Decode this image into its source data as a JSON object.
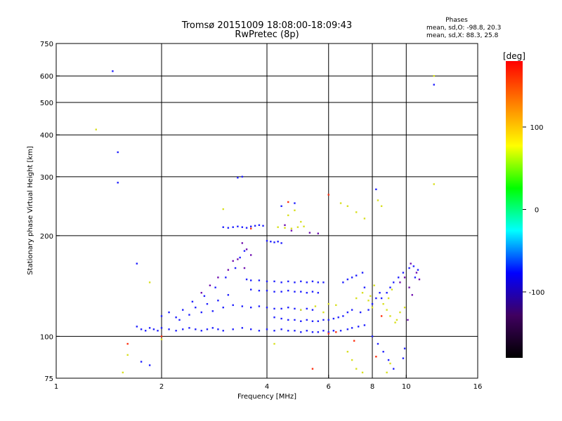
{
  "chart_data": {
    "type": "scatter",
    "title": "Tromsø 20151009 18:08:00-18:09:43",
    "subtitle": "RwPretec (8p)",
    "stats": {
      "heading": "Phases",
      "line_o": "mean, sd,O: -98.8, 20.3",
      "line_x": "mean, sd,X:  88.3, 25.8"
    },
    "xlabel": "Frequency [MHz]",
    "ylabel": "Stationary phase Virtual Height [km]",
    "x_scale": "log",
    "y_scale": "log",
    "xlim": [
      1,
      16
    ],
    "ylim": [
      75,
      750
    ],
    "x_ticks": [
      1,
      2,
      4,
      6,
      8,
      10,
      16
    ],
    "x_tick_labels": [
      "1",
      "2",
      "4",
      "6",
      "8",
      "10",
      "16"
    ],
    "y_ticks": [
      75,
      100,
      200,
      300,
      400,
      500,
      600,
      750
    ],
    "y_tick_labels": [
      "75",
      "100",
      "200",
      "300",
      "400",
      "500",
      "600",
      "750"
    ],
    "grid_x": [
      2,
      4,
      6,
      8,
      10
    ],
    "grid_y": [
      100,
      200,
      300,
      400,
      500,
      600
    ],
    "colorbar": {
      "label": "[deg]",
      "range": [
        -180,
        180
      ],
      "ticks": [
        100,
        0,
        -100
      ],
      "tick_labels": [
        "100",
        "0",
        "-100"
      ],
      "colors": [
        "#ff0000",
        "#ff8000",
        "#ffff00",
        "#00ff00",
        "#00ffff",
        "#0000ff",
        "#400060",
        "#000000"
      ]
    },
    "series": [
      {
        "points": [
          [
            1.7,
            107
          ],
          [
            1.75,
            105
          ],
          [
            1.8,
            104
          ],
          [
            1.85,
            106
          ],
          [
            1.9,
            105
          ],
          [
            1.95,
            104
          ],
          [
            2.0,
            106
          ],
          [
            2.1,
            105
          ],
          [
            2.2,
            104
          ],
          [
            2.3,
            105
          ],
          [
            2.4,
            106
          ],
          [
            2.5,
            105
          ],
          [
            2.6,
            104
          ],
          [
            2.7,
            105
          ],
          [
            2.8,
            106
          ],
          [
            2.9,
            105
          ],
          [
            3.0,
            104
          ],
          [
            3.2,
            105
          ],
          [
            3.4,
            106
          ],
          [
            3.6,
            105
          ],
          [
            3.8,
            104
          ],
          [
            4.0,
            105
          ],
          [
            4.2,
            104
          ],
          [
            4.4,
            105
          ],
          [
            4.6,
            104
          ],
          [
            4.8,
            104
          ],
          [
            5.0,
            103
          ],
          [
            5.2,
            104
          ],
          [
            5.4,
            103
          ],
          [
            5.6,
            103
          ],
          [
            5.8,
            104
          ],
          [
            6.0,
            103
          ],
          [
            6.2,
            104
          ],
          [
            6.5,
            104
          ],
          [
            6.8,
            105
          ],
          [
            7.0,
            106
          ],
          [
            7.3,
            107
          ],
          [
            7.6,
            108
          ],
          [
            3.0,
            212
          ],
          [
            3.1,
            211
          ],
          [
            3.2,
            212
          ],
          [
            3.3,
            213
          ],
          [
            3.4,
            212
          ],
          [
            3.5,
            211
          ],
          [
            3.6,
            213
          ],
          [
            3.7,
            214
          ],
          [
            3.8,
            215
          ],
          [
            3.9,
            214
          ],
          [
            4.0,
            193
          ],
          [
            4.1,
            192
          ],
          [
            4.2,
            191
          ],
          [
            4.3,
            192
          ],
          [
            4.4,
            190
          ],
          [
            3.5,
            148
          ],
          [
            3.6,
            147
          ],
          [
            3.8,
            147
          ],
          [
            4.0,
            146
          ],
          [
            4.2,
            146
          ],
          [
            4.4,
            145
          ],
          [
            4.6,
            146
          ],
          [
            4.8,
            145
          ],
          [
            5.0,
            146
          ],
          [
            5.2,
            145
          ],
          [
            5.4,
            146
          ],
          [
            5.6,
            145
          ],
          [
            5.8,
            145
          ],
          [
            3.6,
            138
          ],
          [
            3.8,
            137
          ],
          [
            4.0,
            137
          ],
          [
            4.2,
            136
          ],
          [
            4.4,
            136
          ],
          [
            4.6,
            137
          ],
          [
            4.8,
            136
          ],
          [
            5.0,
            136
          ],
          [
            5.2,
            135
          ],
          [
            5.4,
            136
          ],
          [
            5.6,
            135
          ],
          [
            3.2,
            124
          ],
          [
            3.4,
            123
          ],
          [
            3.6,
            122
          ],
          [
            3.8,
            123
          ],
          [
            4.0,
            122
          ],
          [
            4.2,
            121
          ],
          [
            4.4,
            121
          ],
          [
            4.6,
            122
          ],
          [
            4.8,
            121
          ],
          [
            5.0,
            120
          ],
          [
            5.2,
            121
          ],
          [
            5.4,
            120
          ],
          [
            2.0,
            115
          ],
          [
            2.1,
            118
          ],
          [
            2.2,
            114
          ],
          [
            2.3,
            120
          ],
          [
            2.4,
            116
          ],
          [
            2.5,
            122
          ],
          [
            2.6,
            118
          ],
          [
            2.7,
            125
          ],
          [
            2.8,
            119
          ],
          [
            2.9,
            128
          ],
          [
            3.0,
            122
          ],
          [
            3.1,
            133
          ],
          [
            2.85,
            140
          ],
          [
            3.05,
            150
          ],
          [
            3.25,
            160
          ],
          [
            3.35,
            172
          ],
          [
            3.45,
            180
          ],
          [
            2.65,
            132
          ],
          [
            2.45,
            127
          ],
          [
            2.25,
            112
          ],
          [
            4.2,
            114
          ],
          [
            4.4,
            113
          ],
          [
            4.6,
            112
          ],
          [
            4.8,
            112
          ],
          [
            5.0,
            111
          ],
          [
            5.2,
            112
          ],
          [
            5.4,
            111
          ],
          [
            5.6,
            111
          ],
          [
            5.8,
            112
          ],
          [
            6.0,
            112
          ],
          [
            6.2,
            113
          ],
          [
            6.4,
            114
          ],
          [
            6.6,
            115
          ],
          [
            6.8,
            118
          ],
          [
            7.0,
            120
          ],
          [
            6.6,
            145
          ],
          [
            6.8,
            148
          ],
          [
            7.0,
            150
          ],
          [
            7.2,
            152
          ],
          [
            7.5,
            155
          ],
          [
            8.5,
            130
          ],
          [
            8.8,
            135
          ],
          [
            9.0,
            140
          ],
          [
            9.2,
            145
          ],
          [
            9.5,
            150
          ],
          [
            9.8,
            155
          ],
          [
            10.2,
            160
          ],
          [
            10.5,
            162
          ],
          [
            10.8,
            158
          ],
          [
            10.6,
            150
          ],
          [
            7.8,
            120
          ],
          [
            8.0,
            125
          ],
          [
            8.2,
            130
          ],
          [
            8.4,
            135
          ],
          [
            7.6,
            140
          ],
          [
            7.4,
            118
          ],
          [
            8.0,
            100
          ],
          [
            8.3,
            95
          ],
          [
            8.6,
            90
          ],
          [
            8.9,
            85
          ],
          [
            9.2,
            80
          ],
          [
            9.8,
            86
          ],
          [
            9.9,
            92
          ],
          [
            1.45,
            620
          ],
          [
            1.5,
            355
          ],
          [
            1.5,
            288
          ],
          [
            3.3,
            298
          ],
          [
            3.4,
            300
          ],
          [
            12,
            565
          ],
          [
            1.7,
            165
          ],
          [
            1.85,
            82
          ],
          [
            1.75,
            84
          ],
          [
            8.2,
            275
          ],
          [
            4.8,
            250
          ],
          [
            4.4,
            245
          ]
        ]
      },
      {
        "points": [
          [
            4.3,
            212
          ],
          [
            4.5,
            211
          ],
          [
            4.7,
            210
          ],
          [
            4.9,
            212
          ],
          [
            5.1,
            213
          ],
          [
            4.6,
            230
          ],
          [
            4.8,
            238
          ],
          [
            5.0,
            220
          ],
          [
            6.5,
            250
          ],
          [
            6.8,
            245
          ],
          [
            7.2,
            235
          ],
          [
            7.6,
            225
          ],
          [
            8.3,
            255
          ],
          [
            8.5,
            245
          ],
          [
            8.6,
            125
          ],
          [
            8.8,
            120
          ],
          [
            9.0,
            115
          ],
          [
            9.3,
            110
          ],
          [
            9.6,
            118
          ],
          [
            9.9,
            122
          ],
          [
            8.9,
            130
          ],
          [
            9.1,
            138
          ],
          [
            9.4,
            112
          ],
          [
            7.2,
            130
          ],
          [
            7.5,
            135
          ],
          [
            7.8,
            128
          ],
          [
            8.0,
            122
          ],
          [
            8.1,
            142
          ],
          [
            7.9,
            132
          ],
          [
            6.8,
            90
          ],
          [
            7.0,
            85
          ],
          [
            7.2,
            80
          ],
          [
            7.5,
            78
          ],
          [
            8.8,
            78
          ],
          [
            9.0,
            83
          ],
          [
            5.0,
            120
          ],
          [
            5.5,
            123
          ],
          [
            6.0,
            125
          ],
          [
            6.3,
            124
          ],
          [
            5.8,
            118
          ],
          [
            1.3,
            415
          ],
          [
            12,
            600
          ],
          [
            12,
            285
          ],
          [
            1.85,
            145
          ],
          [
            1.6,
            88
          ],
          [
            1.55,
            78
          ],
          [
            2.0,
            98
          ],
          [
            3.0,
            240
          ],
          [
            4.2,
            95
          ]
        ]
      },
      {
        "points": [
          [
            6.0,
            102
          ],
          [
            6.3,
            103
          ],
          [
            5.4,
            80
          ],
          [
            8.2,
            87
          ],
          [
            7.1,
            97
          ],
          [
            1.6,
            95
          ],
          [
            2.0,
            100
          ],
          [
            4.6,
            252
          ],
          [
            3.6,
            210
          ],
          [
            6.0,
            265
          ],
          [
            8.5,
            115
          ]
        ]
      },
      {
        "points": [
          [
            3.4,
            190
          ],
          [
            3.5,
            182
          ],
          [
            3.6,
            175
          ],
          [
            3.2,
            168
          ],
          [
            3.1,
            158
          ],
          [
            2.9,
            150
          ],
          [
            2.75,
            142
          ],
          [
            2.6,
            135
          ],
          [
            3.3,
            170
          ],
          [
            3.45,
            160
          ],
          [
            4.5,
            215
          ],
          [
            4.7,
            207
          ],
          [
            5.3,
            204
          ],
          [
            5.6,
            203
          ],
          [
            9.6,
            145
          ],
          [
            9.9,
            150
          ],
          [
            10.2,
            140
          ],
          [
            10.4,
            133
          ],
          [
            10.7,
            155
          ],
          [
            10.3,
            165
          ],
          [
            10.9,
            148
          ],
          [
            10.1,
            112
          ]
        ]
      }
    ]
  }
}
